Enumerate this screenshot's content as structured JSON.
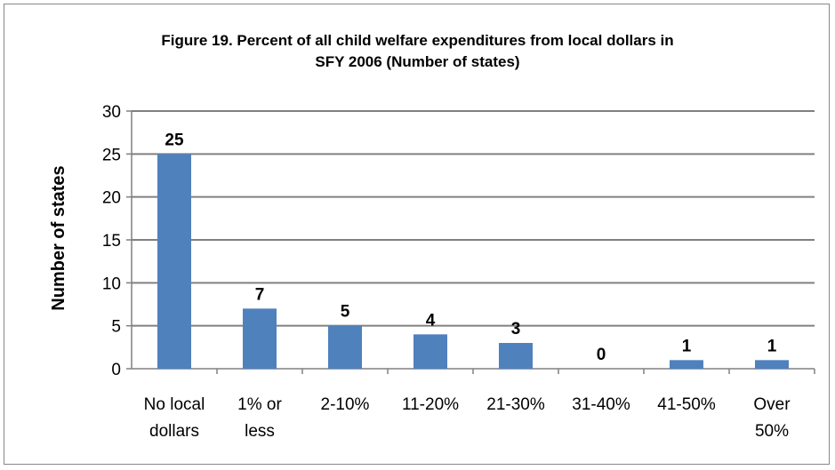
{
  "chart_data": {
    "type": "bar",
    "title_line1": "Figure 19.  Percent of all child welfare expenditures from local dollars in",
    "title_line2": "SFY 2006 (Number of states)",
    "xlabel": "",
    "ylabel": "Number of states",
    "ylim": [
      0,
      30
    ],
    "yticks": [
      0,
      5,
      10,
      15,
      20,
      25,
      30
    ],
    "grid": true,
    "legend": "none",
    "categories": [
      [
        "No local",
        "dollars"
      ],
      [
        "1% or",
        "less"
      ],
      [
        "2-10%"
      ],
      [
        "11-20%"
      ],
      [
        "21-30%"
      ],
      [
        "31-40%"
      ],
      [
        "41-50%"
      ],
      [
        "Over",
        "50%"
      ]
    ],
    "values": [
      25,
      7,
      5,
      4,
      3,
      0,
      1,
      1
    ],
    "colors": {
      "bar": "#4F81BD",
      "grid": "#808080",
      "axis": "#808080"
    }
  }
}
